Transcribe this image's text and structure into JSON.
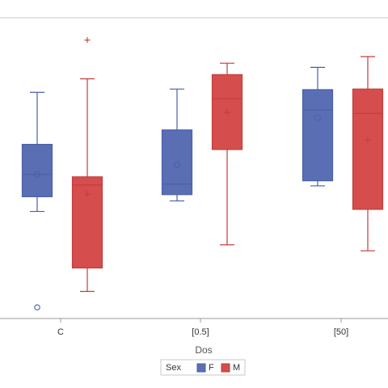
{
  "chart_data": {
    "type": "box",
    "title": "",
    "xlabel": "Dos",
    "ylabel": "",
    "categories": [
      "C",
      "[0.5]",
      "[50]"
    ],
    "grid": false,
    "legend": {
      "title": "Sex",
      "placement": "bottom-center",
      "entries": [
        "F",
        "M"
      ]
    },
    "ylim": [
      0,
      1
    ],
    "series": [
      {
        "name": "F",
        "color": "#5a6fb3",
        "stroke": "#4a5fa8",
        "boxes": [
          {
            "category": "C",
            "whisker_low": 0.356,
            "q1": 0.405,
            "median": 0.479,
            "mean": 0.479,
            "q3": 0.579,
            "whisker_high": 0.752,
            "outliers": [
              0.037
            ],
            "outlier_marker": "circle"
          },
          {
            "category": "[0.5]",
            "whisker_low": 0.391,
            "q1": 0.412,
            "median": 0.447,
            "mean": 0.511,
            "q3": 0.627,
            "whisker_high": 0.763,
            "outliers": []
          },
          {
            "category": "[50]",
            "whisker_low": 0.441,
            "q1": 0.458,
            "median": 0.693,
            "mean": 0.668,
            "q3": 0.761,
            "whisker_high": 0.835,
            "outliers": []
          }
        ]
      },
      {
        "name": "M",
        "color": "#d64d4d",
        "stroke": "#c43c3c",
        "boxes": [
          {
            "category": "C",
            "whisker_low": 0.09,
            "q1": 0.168,
            "median": 0.444,
            "mean": 0.414,
            "q3": 0.471,
            "whisker_high": 0.797,
            "outliers": [
              0.926
            ],
            "outlier_marker": "plus"
          },
          {
            "category": "[0.5]",
            "whisker_low": 0.245,
            "q1": 0.562,
            "median": 0.731,
            "mean": 0.685,
            "q3": 0.811,
            "whisker_high": 0.849,
            "outliers": []
          },
          {
            "category": "[50]",
            "whisker_low": 0.225,
            "q1": 0.363,
            "median": 0.682,
            "mean": 0.595,
            "q3": 0.763,
            "whisker_high": 0.871,
            "outliers": []
          }
        ]
      }
    ]
  }
}
